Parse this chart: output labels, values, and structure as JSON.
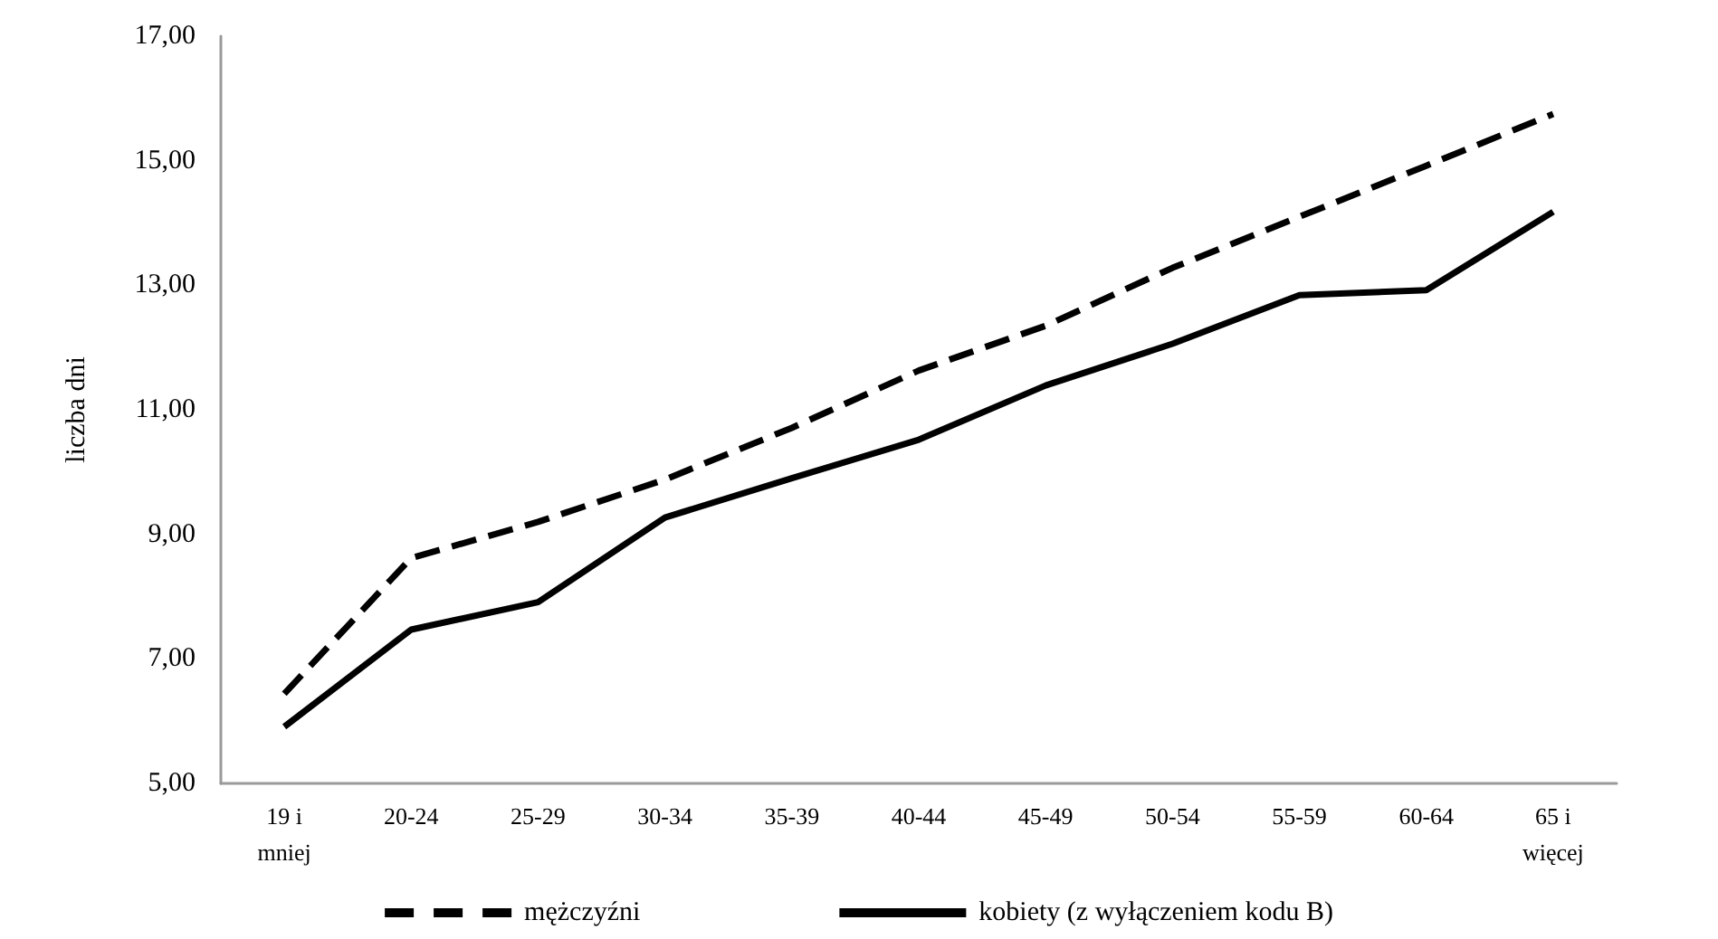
{
  "chart_data": {
    "type": "line",
    "ylabel": "liczba dni",
    "categories": [
      "19 i\nmniej",
      "20-24",
      "25-29",
      "30-34",
      "35-39",
      "40-44",
      "45-49",
      "50-54",
      "55-59",
      "60-64",
      "65 i\nwięcej"
    ],
    "series": [
      {
        "name": "mężczyźni",
        "color": "#000000",
        "line_style": "dashed",
        "values": [
          6.44,
          8.62,
          9.2,
          9.88,
          10.71,
          11.63,
          12.35,
          13.28,
          14.1,
          14.92,
          15.75
        ]
      },
      {
        "name": "kobiety (z wyłączeniem kodu B)",
        "color": "#000000",
        "line_style": "solid",
        "values": [
          5.91,
          7.47,
          7.91,
          9.27,
          9.9,
          10.52,
          11.39,
          12.06,
          12.84,
          12.92,
          14.18
        ]
      }
    ],
    "ylim": [
      5,
      17
    ],
    "yticks": [
      {
        "value": 5,
        "label": "5,00"
      },
      {
        "value": 7,
        "label": "7,00"
      },
      {
        "value": 9,
        "label": "9,00"
      },
      {
        "value": 11,
        "label": "11,00"
      },
      {
        "value": 13,
        "label": "13,00"
      },
      {
        "value": 15,
        "label": "15,00"
      },
      {
        "value": 17,
        "label": "17,00"
      }
    ],
    "grid": false,
    "legend": "bottom",
    "marker": "none"
  }
}
